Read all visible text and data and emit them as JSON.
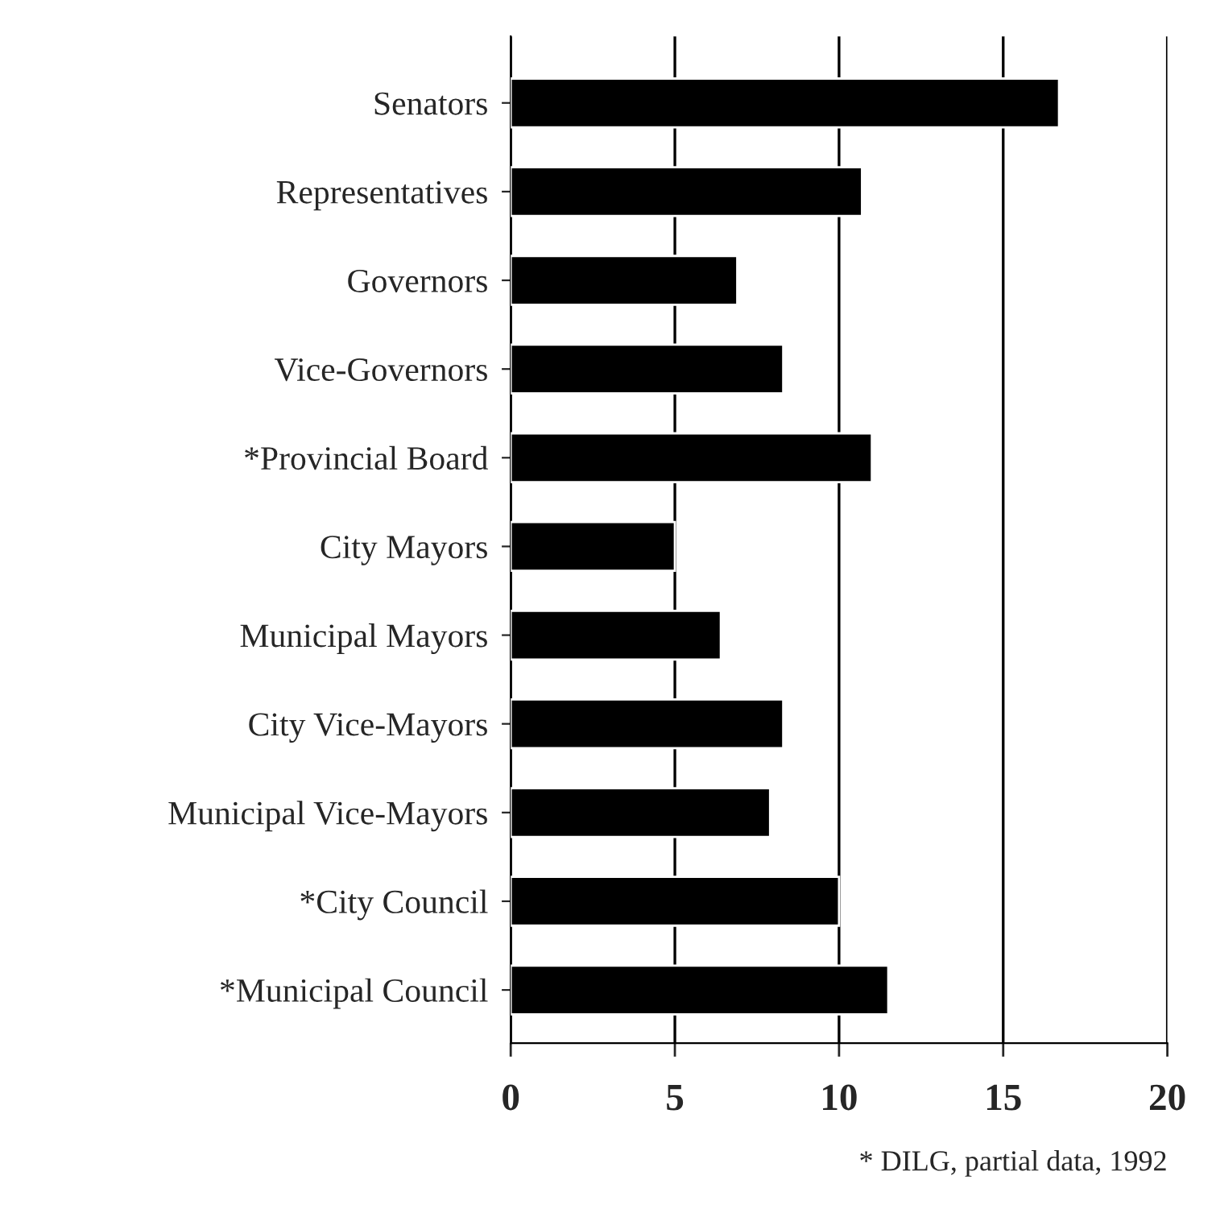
{
  "chart_data": {
    "type": "bar",
    "orientation": "horizontal",
    "categories": [
      "Senators",
      "Representatives",
      "Governors",
      "Vice-Governors",
      "*Provincial Board",
      "City Mayors",
      "Municipal Mayors",
      "City Vice-Mayors",
      "Municipal Vice-Mayors",
      "*City Council",
      "*Municipal Council"
    ],
    "values": [
      16.7,
      10.7,
      6.9,
      8.3,
      11.0,
      5.0,
      6.4,
      8.3,
      7.9,
      10.0,
      11.5
    ],
    "color": "#000000",
    "xlim": [
      0,
      20
    ],
    "xticks": [
      0,
      5,
      10,
      15,
      20
    ],
    "grid": "x",
    "annotations": [
      "* DILG, partial data, 1992"
    ]
  }
}
